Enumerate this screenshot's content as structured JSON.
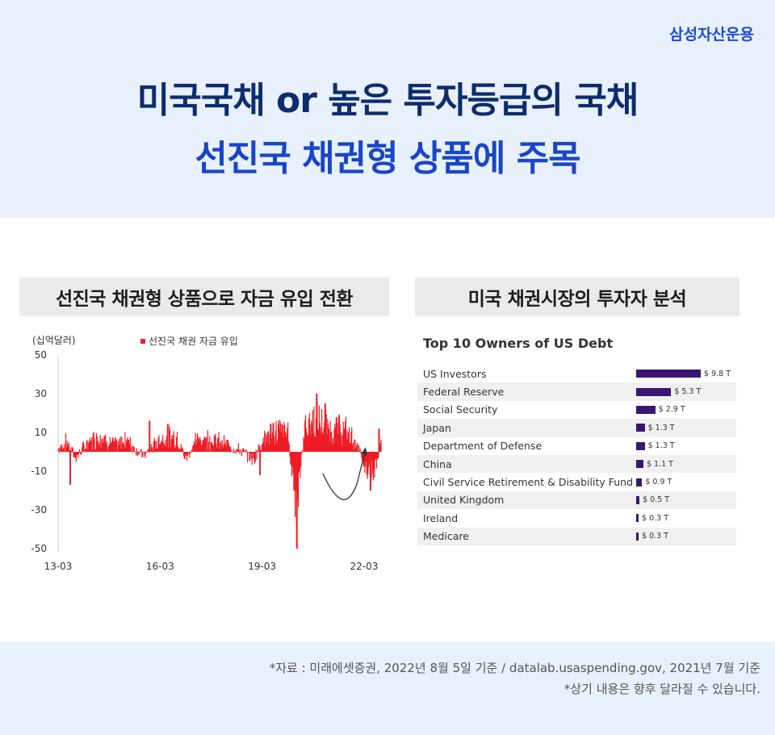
{
  "header": {
    "brand": "삼성자산운용",
    "title_line1": "미국국채 or 높은 투자등급의 국채",
    "title_line2": "선진국 채권형 상품에 주목"
  },
  "left_panel": {
    "title": "선진국 채권형 상품으로 자금 유입 전환"
  },
  "right_panel": {
    "title": "미국 채권시장의 투자자 분석"
  },
  "colors": {
    "brand_blue": "#1b4bd8",
    "title_navy": "#0d2c6c",
    "bar_red": "#ee1c25",
    "debt_purple": "#3a1670"
  },
  "chart_data": [
    {
      "type": "bar",
      "unit_label": "(십억달러)",
      "legend": "선진국 채권 자금 유입",
      "yticks": [
        "50",
        "30",
        "10",
        "-10",
        "-30",
        "-50"
      ],
      "ylim": [
        -50,
        50
      ],
      "xticks": [
        "13-03",
        "16-03",
        "19-03",
        "22-03"
      ],
      "xlim": [
        "2013-03",
        "2022-09"
      ],
      "anchors": [
        [
          "2013-03",
          2
        ],
        [
          "2013-06",
          6
        ],
        [
          "2013-09",
          -4
        ],
        [
          "2013-12",
          3
        ],
        [
          "2014-03",
          8
        ],
        [
          "2014-06",
          10
        ],
        [
          "2014-09",
          6
        ],
        [
          "2014-12",
          4
        ],
        [
          "2015-03",
          9
        ],
        [
          "2015-06",
          2
        ],
        [
          "2015-09",
          -3
        ],
        [
          "2015-12",
          3
        ],
        [
          "2016-03",
          8
        ],
        [
          "2016-06",
          10
        ],
        [
          "2016-09",
          9
        ],
        [
          "2016-12",
          -5
        ],
        [
          "2017-03",
          6
        ],
        [
          "2017-06",
          9
        ],
        [
          "2017-09",
          8
        ],
        [
          "2017-12",
          6
        ],
        [
          "2018-03",
          4
        ],
        [
          "2018-06",
          2
        ],
        [
          "2018-09",
          -1
        ],
        [
          "2018-12",
          -5
        ],
        [
          "2019-03",
          8
        ],
        [
          "2019-06",
          12
        ],
        [
          "2019-09",
          14
        ],
        [
          "2019-12",
          12
        ],
        [
          "2020-03",
          -40
        ],
        [
          "2020-06",
          16
        ],
        [
          "2020-09",
          20
        ],
        [
          "2020-12",
          18
        ],
        [
          "2021-03",
          14
        ],
        [
          "2021-06",
          15
        ],
        [
          "2021-09",
          12
        ],
        [
          "2021-12",
          6
        ],
        [
          "2022-03",
          -8
        ],
        [
          "2022-06",
          -14
        ],
        [
          "2022-09",
          6
        ]
      ],
      "spikes": [
        [
          "2013-07",
          -17
        ],
        [
          "2015-11",
          16
        ],
        [
          "2019-02",
          -12
        ],
        [
          "2020-03",
          -50
        ],
        [
          "2020-10",
          30
        ],
        [
          "2021-01",
          25
        ],
        [
          "2022-05",
          -20
        ],
        [
          "2022-08",
          12
        ]
      ]
    },
    {
      "type": "bar",
      "title": "Top 10 Owners of US Debt",
      "categories": [
        "US Investors",
        "Federal Reserve",
        "Social Security",
        "Japan",
        "Department of Defense",
        "China",
        "Civil Service Retirement & Disability Fund",
        "United Kingdom",
        "Ireland",
        "Medicare"
      ],
      "values": [
        9.8,
        5.3,
        2.9,
        1.3,
        1.3,
        1.1,
        0.9,
        0.5,
        0.3,
        0.3
      ],
      "value_labels": [
        "$ 9.8 T",
        "$ 5.3 T",
        "$ 2.9 T",
        "$ 1.3 T",
        "$ 1.3 T",
        "$ 1.1 T",
        "$ 0.9 T",
        "$ 0.5 T",
        "$ 0.3 T",
        "$ 0.3 T"
      ]
    }
  ],
  "footer": {
    "line1": "*자료 : 미래에셋증권, 2022년 8월 5일 기준 / datalab.usaspending.gov, 2021년 7월 기준",
    "line2": "*상기 내용은 향후 달라질 수 있습니다."
  }
}
